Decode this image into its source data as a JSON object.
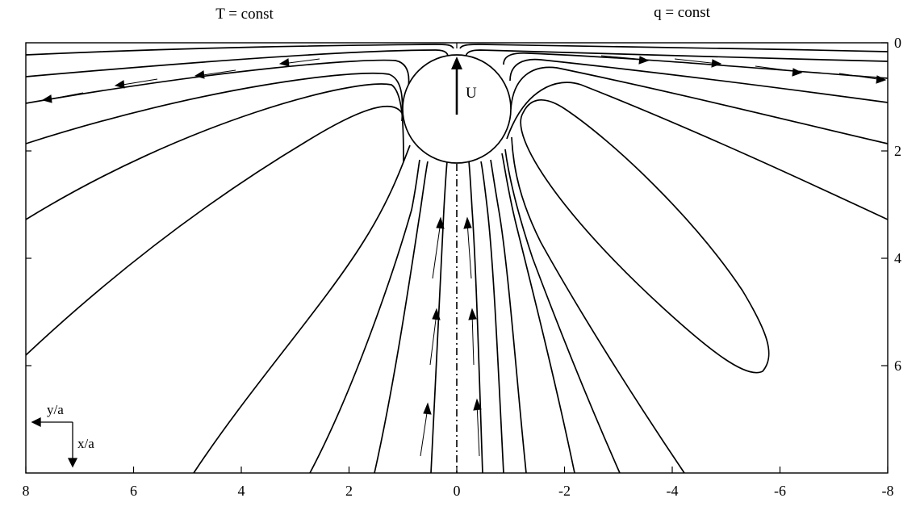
{
  "header": {
    "left_label": "T = const",
    "right_label": "q = const"
  },
  "velocity_label": "U",
  "axes": {
    "x_ticks": [
      "8",
      "6",
      "4",
      "2",
      "0",
      "-2",
      "-4",
      "-6",
      "-8"
    ],
    "y_ticks": [
      "0",
      "2",
      "4",
      "6"
    ],
    "y_arrow_label": "y/a",
    "x_arrow_label": "x/a"
  },
  "colors": {
    "ink": "#000000",
    "background": "#ffffff"
  }
}
